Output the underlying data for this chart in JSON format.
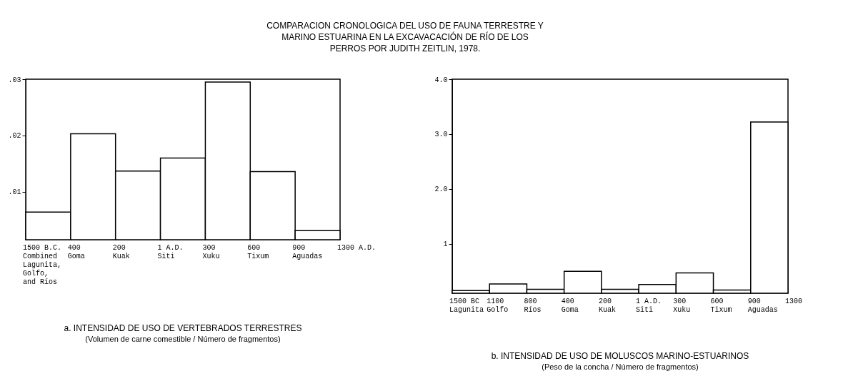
{
  "chart_data": [
    {
      "type": "bar",
      "title": "a. INTENSIDAD DE USO DE VERTEBRADOS TERRESTRES",
      "subtitle": "(Volumen de carne comestible / Número de fragmentos)",
      "categories": [
        "Combined Lagunita, Golfo, and Ríos",
        "Goma",
        "Kuak",
        "Siti",
        "Xuku",
        "Tixum",
        "Aguadas"
      ],
      "values": [
        0.0064,
        0.0203,
        0.0137,
        0.016,
        0.0295,
        0.0136,
        0.0031
      ],
      "color": "#ffffff",
      "ylim": [
        0.0015,
        0.03
      ],
      "yticks": [
        {
          "value": 0.01,
          "label": ".01"
        },
        {
          "value": 0.02,
          "label": ".02"
        },
        {
          "value": 0.03,
          "label": ".03"
        }
      ],
      "grid": false,
      "annotations": [
        "COMPARACION CRONOLOGICA DEL USO DE FAUNA TERRESTRE Y MARINO ESTUARINA EN LA EXCAVACACIÓN DE RÍO DE LOS PERROS POR JUDITH ZEITLIN, 1978.",
        "1500 B.C.",
        "400",
        "200",
        "1 A.D.",
        "300",
        "600",
        "900",
        "1300 A.D."
      ]
    },
    {
      "type": "bar",
      "title": "b. INTENSIDAD DE USO DE MOLUSCOS MARINO-ESTUARINOS",
      "subtitle": "(Peso de la concha / Número de fragmentos)",
      "categories": [
        "Lagunita",
        "Golfo",
        "Ríos",
        "Goma",
        "Kuak",
        "Siti",
        "Xuku",
        "Tixum",
        "Aguadas"
      ],
      "values": [
        0.15,
        0.27,
        0.17,
        0.5,
        0.17,
        0.26,
        0.47,
        0.16,
        3.22
      ],
      "color": "#ffffff",
      "ylim": [
        0.1,
        4.0
      ],
      "yticks": [
        {
          "value": 1,
          "label": "1"
        },
        {
          "value": 2,
          "label": "2.0"
        },
        {
          "value": 3,
          "label": "3.0"
        },
        {
          "value": 4,
          "label": "4.0"
        }
      ],
      "grid": false,
      "annotations": [
        "1500 BC",
        "1100",
        "800",
        "400",
        "200",
        "1 A.D.",
        "300",
        "600",
        "900",
        "1300"
      ]
    }
  ]
}
